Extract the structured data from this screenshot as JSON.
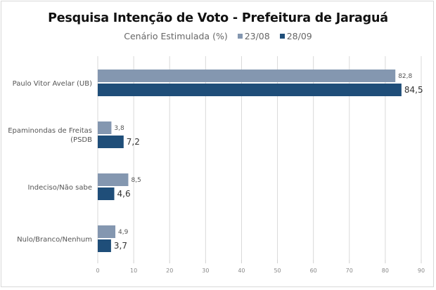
{
  "chart_data": {
    "type": "bar",
    "orientation": "horizontal",
    "title": "Pesquisa Intenção de Voto - Prefeitura de Jaraguá",
    "subtitle": "Cenário Estimulada (%)",
    "categories": [
      "Paulo Vitor Avelar (UB)",
      "Epaminondas de Freitas (PSDB",
      "Indeciso/Não sabe",
      "Nulo/Branco/Nenhum"
    ],
    "series": [
      {
        "name": "23/08",
        "color": "#8497b0",
        "values": [
          82.8,
          3.8,
          8.5,
          4.9
        ],
        "labels": [
          "82,8",
          "3,8",
          "8,5",
          "4,9"
        ]
      },
      {
        "name": "28/09",
        "color": "#1f4e79",
        "values": [
          84.5,
          7.2,
          4.6,
          3.7
        ],
        "labels": [
          "84,5",
          "7,2",
          "4,6",
          "3,7"
        ]
      }
    ],
    "xlim": [
      0,
      90
    ],
    "xticks": [
      0,
      10,
      20,
      30,
      40,
      50,
      60,
      70,
      80,
      90
    ],
    "grid": true,
    "legend_position": "top"
  }
}
